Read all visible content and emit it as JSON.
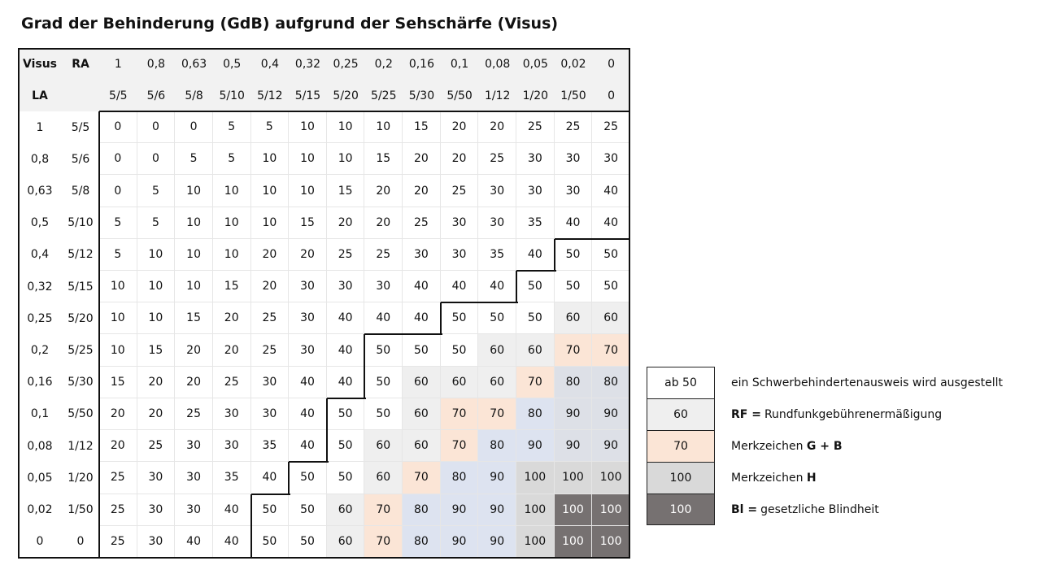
{
  "title": "Grad der Behinderung (GdB) aufgrund der Sehschärfe (Visus)",
  "header": {
    "visus_label": "Visus",
    "ra_label": "RA",
    "la_label": "LA",
    "ra_decimal": [
      "1",
      "0,8",
      "0,63",
      "0,5",
      "0,4",
      "0,32",
      "0,25",
      "0,2",
      "0,16",
      "0,1",
      "0,08",
      "0,05",
      "0,02",
      "0"
    ],
    "ra_fraction": [
      "5/5",
      "5/6",
      "5/8",
      "5/10",
      "5/12",
      "5/15",
      "5/20",
      "5/25",
      "5/30",
      "5/50",
      "1/12",
      "1/20",
      "1/50",
      "0"
    ]
  },
  "rows": [
    {
      "la": "1",
      "frac": "5/5",
      "values": [
        "0",
        "0",
        "0",
        "5",
        "5",
        "10",
        "10",
        "10",
        "15",
        "20",
        "20",
        "25",
        "25",
        "25"
      ]
    },
    {
      "la": "0,8",
      "frac": "5/6",
      "values": [
        "0",
        "0",
        "5",
        "5",
        "10",
        "10",
        "10",
        "15",
        "20",
        "20",
        "25",
        "30",
        "30",
        "30"
      ]
    },
    {
      "la": "0,63",
      "frac": "5/8",
      "values": [
        "0",
        "5",
        "10",
        "10",
        "10",
        "10",
        "15",
        "20",
        "20",
        "25",
        "30",
        "30",
        "30",
        "40"
      ]
    },
    {
      "la": "0,5",
      "frac": "5/10",
      "values": [
        "5",
        "5",
        "10",
        "10",
        "10",
        "15",
        "20",
        "20",
        "25",
        "30",
        "30",
        "35",
        "40",
        "40"
      ]
    },
    {
      "la": "0,4",
      "frac": "5/12",
      "values": [
        "5",
        "10",
        "10",
        "10",
        "20",
        "20",
        "25",
        "25",
        "30",
        "30",
        "35",
        "40",
        "50",
        "50"
      ]
    },
    {
      "la": "0,32",
      "frac": "5/15",
      "values": [
        "10",
        "10",
        "10",
        "15",
        "20",
        "30",
        "30",
        "30",
        "40",
        "40",
        "40",
        "50",
        "50",
        "50"
      ]
    },
    {
      "la": "0,25",
      "frac": "5/20",
      "values": [
        "10",
        "10",
        "15",
        "20",
        "25",
        "30",
        "40",
        "40",
        "40",
        "50",
        "50",
        "50",
        "60",
        "60"
      ]
    },
    {
      "la": "0,2",
      "frac": "5/25",
      "values": [
        "10",
        "15",
        "20",
        "20",
        "25",
        "30",
        "40",
        "50",
        "50",
        "50",
        "60",
        "60",
        "70",
        "70"
      ]
    },
    {
      "la": "0,16",
      "frac": "5/30",
      "values": [
        "15",
        "20",
        "20",
        "25",
        "30",
        "40",
        "40",
        "50",
        "60",
        "60",
        "60",
        "70",
        "80",
        "80"
      ]
    },
    {
      "la": "0,1",
      "frac": "5/50",
      "values": [
        "20",
        "20",
        "25",
        "30",
        "30",
        "40",
        "50",
        "50",
        "60",
        "70",
        "70",
        "80",
        "90",
        "90"
      ]
    },
    {
      "la": "0,08",
      "frac": "1/12",
      "values": [
        "20",
        "25",
        "30",
        "30",
        "35",
        "40",
        "50",
        "60",
        "60",
        "70",
        "80",
        "90",
        "90",
        "90"
      ]
    },
    {
      "la": "0,05",
      "frac": "1/20",
      "values": [
        "25",
        "30",
        "30",
        "35",
        "40",
        "50",
        "50",
        "60",
        "70",
        "80",
        "90",
        "100",
        "100",
        "100"
      ]
    },
    {
      "la": "0,02",
      "frac": "1/50",
      "values": [
        "25",
        "30",
        "30",
        "40",
        "50",
        "50",
        "60",
        "70",
        "80",
        "90",
        "90",
        "100",
        "100",
        "100"
      ]
    },
    {
      "la": "0",
      "frac": "0",
      "values": [
        "25",
        "30",
        "40",
        "40",
        "50",
        "50",
        "60",
        "70",
        "80",
        "90",
        "90",
        "100",
        "100",
        "100"
      ]
    }
  ],
  "colors": {
    "white": "#ffffff",
    "grey": "#efefef",
    "peach": "#fbe5d6",
    "blue": "#dde3f0",
    "bluegrey": "#dde0e7",
    "lgrey": "#d9d9d9",
    "dgrey": "#767171"
  },
  "legend": [
    {
      "box": "ab 50",
      "bold": "",
      "text": "ein Schwerbehindertenausweis wird ausgestellt",
      "class": "c-white"
    },
    {
      "box": "60",
      "bold": "RF =",
      "text": "Rundfunkgebührenermäßigung",
      "class": "c-grey"
    },
    {
      "box": "70",
      "bold": "",
      "text": "Merkzeichen ",
      "bold2": "G + B",
      "class": "c-peach"
    },
    {
      "box": "100",
      "bold": "",
      "text": "Merkzeichen ",
      "bold2": "H",
      "class": "c-lgrey"
    },
    {
      "box": "100",
      "bold": "Bl =",
      "text": "gesetzliche Blindheit",
      "class": "c-dgrey"
    }
  ]
}
